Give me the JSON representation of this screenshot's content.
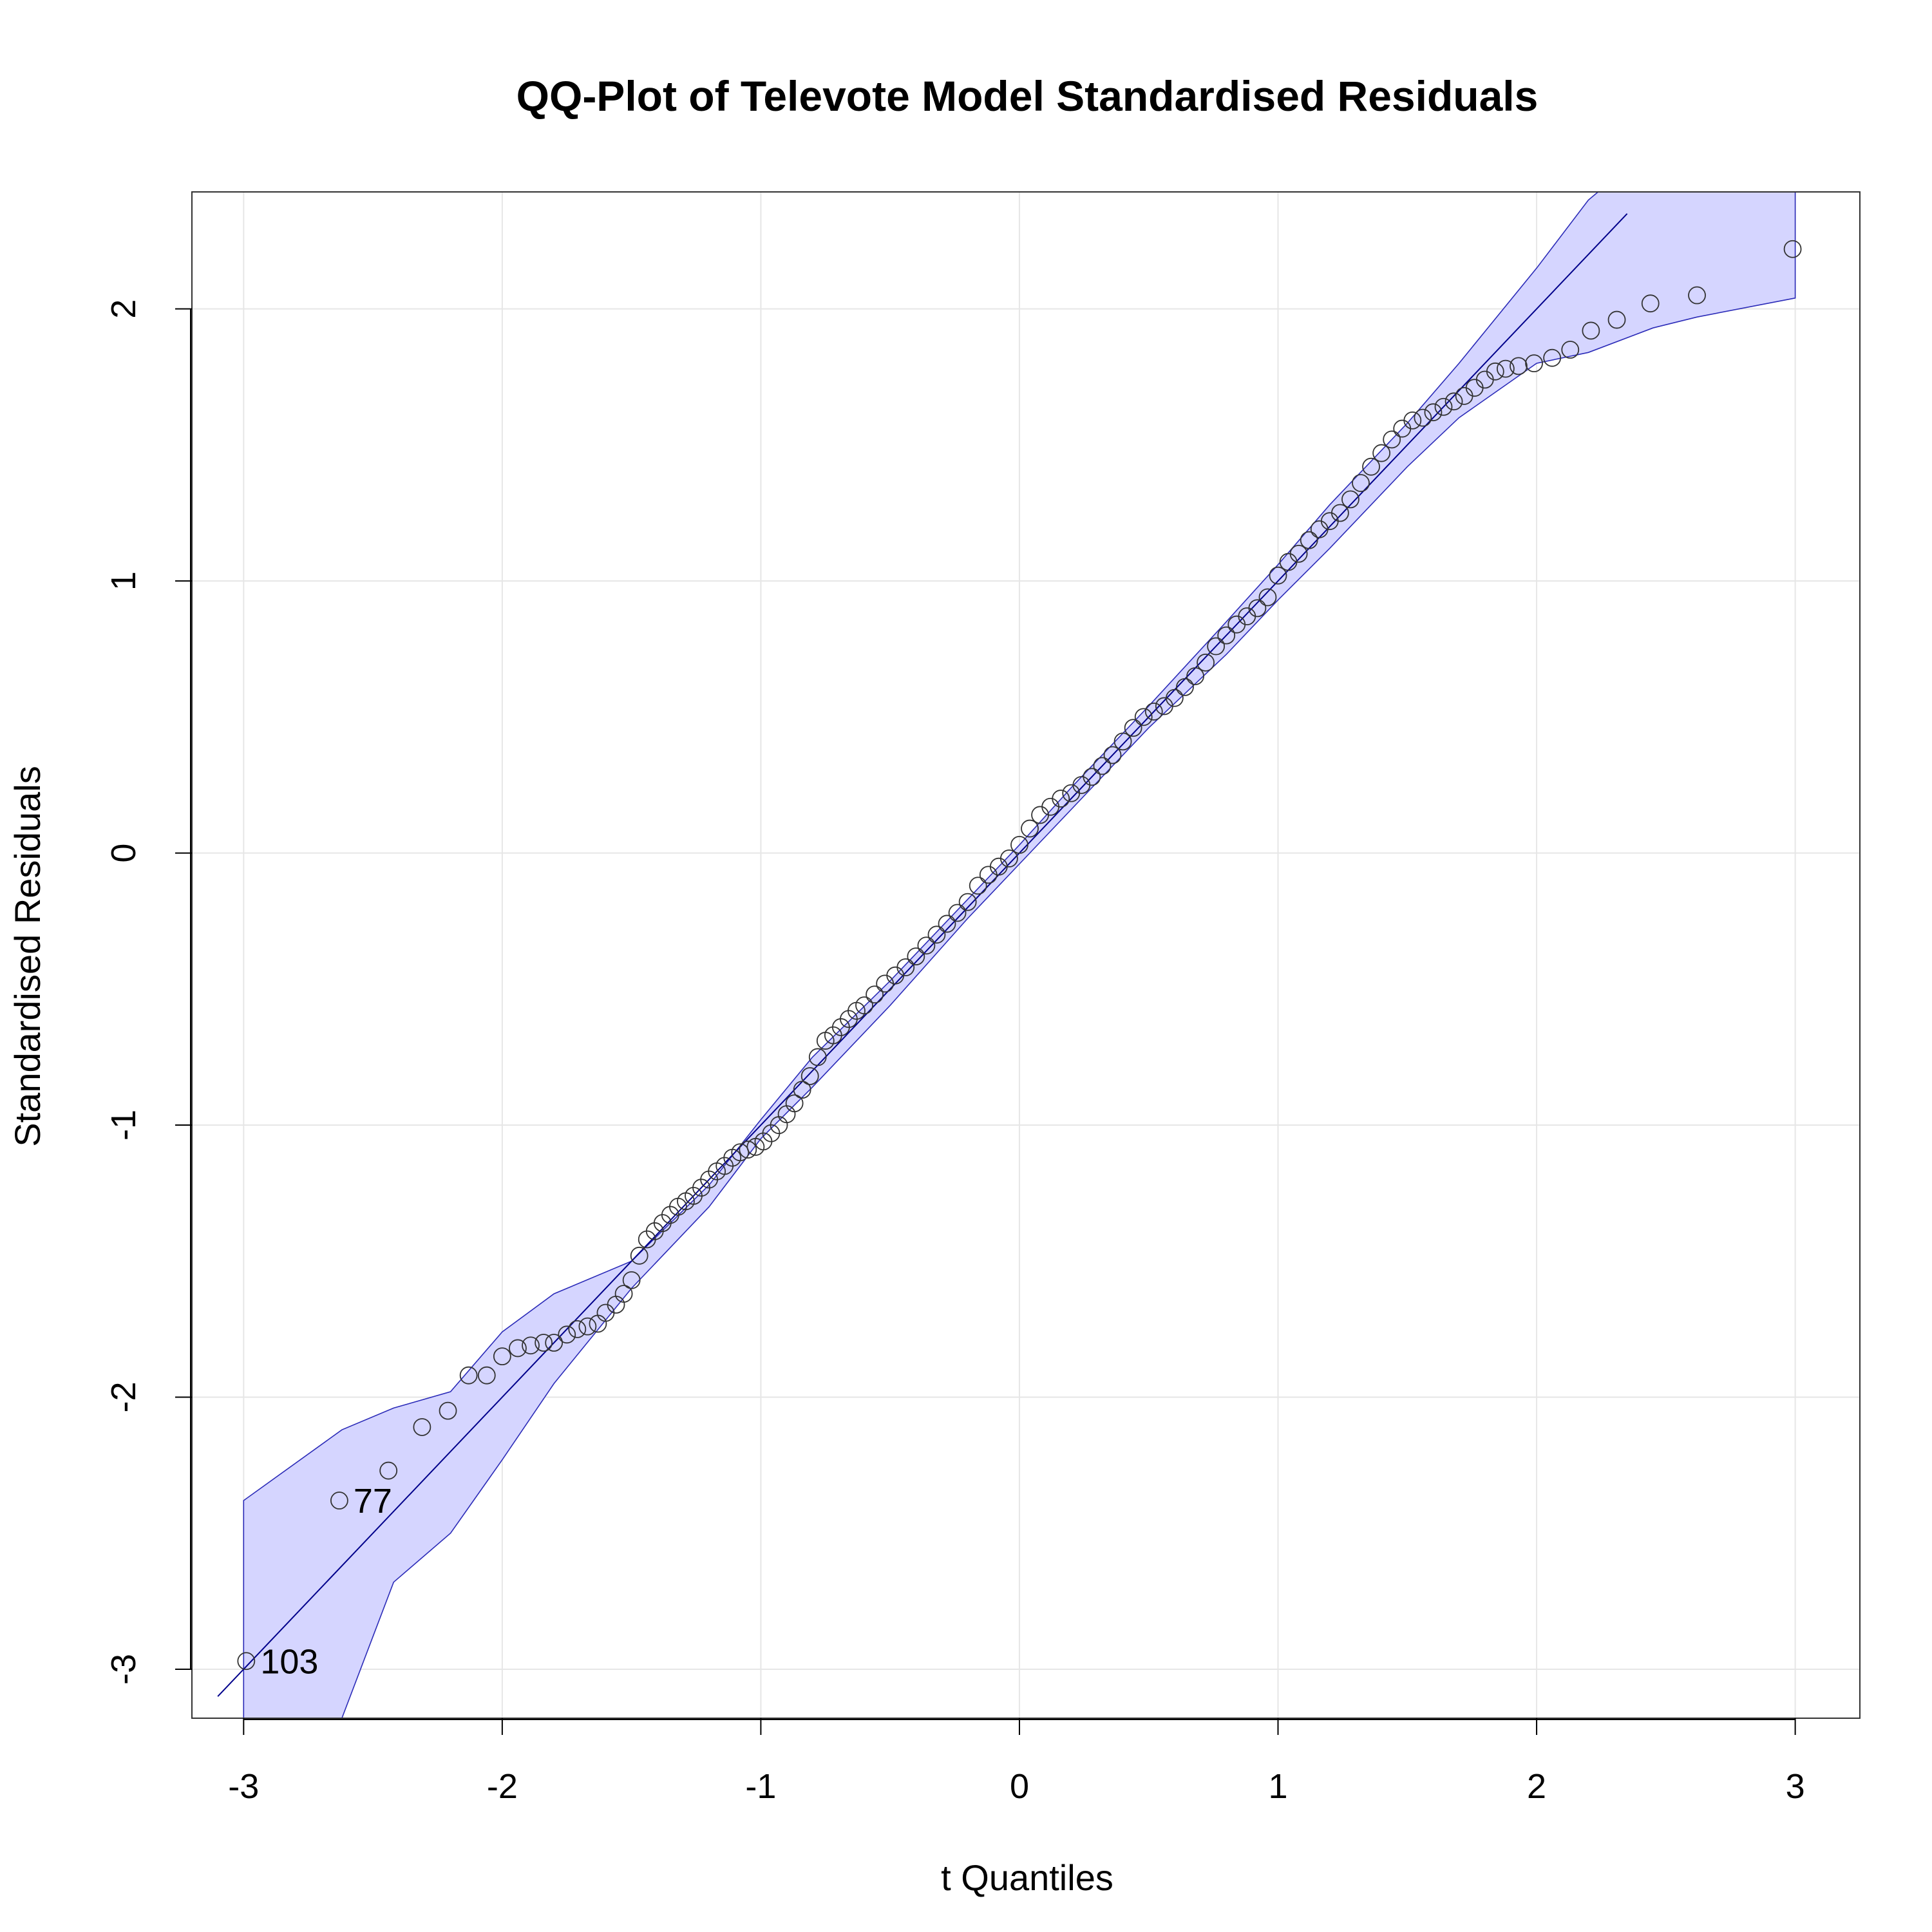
{
  "chart_data": {
    "type": "scatter",
    "title": "QQ-Plot of Televote Model Standardised Residuals",
    "xlabel": "t Quantiles",
    "ylabel": "Standardised Residuals",
    "xlim": [
      -3.2,
      3.25
    ],
    "ylim": [
      -3.18,
      2.43
    ],
    "x_ticks": [
      -3,
      -2,
      -1,
      0,
      1,
      2,
      3
    ],
    "y_ticks": [
      -3,
      -2,
      -1,
      0,
      1,
      2
    ],
    "grid": true,
    "reference_line": {
      "intercept": 0.0,
      "slope": 1.0,
      "color": "#00008B"
    },
    "confidence_band": {
      "color": "#D5D5FF",
      "x": [
        -3.0,
        -2.62,
        -2.42,
        -2.2,
        -2.0,
        -1.8,
        -1.5,
        -1.2,
        -1.0,
        -0.8,
        -0.5,
        -0.2,
        0.0,
        0.2,
        0.5,
        0.8,
        1.0,
        1.2,
        1.5,
        1.7,
        2.0,
        2.2,
        2.45,
        2.62,
        3.0
      ],
      "upper": [
        -2.38,
        -2.12,
        -2.04,
        -1.98,
        -1.76,
        -1.62,
        -1.5,
        -1.22,
        -0.98,
        -0.75,
        -0.47,
        -0.17,
        0.03,
        0.24,
        0.54,
        0.85,
        1.06,
        1.28,
        1.58,
        1.8,
        2.15,
        2.4,
        2.6,
        2.5,
        2.43
      ],
      "lower": [
        -3.18,
        -3.18,
        -2.68,
        -2.5,
        -2.23,
        -1.95,
        -1.6,
        -1.3,
        -1.05,
        -0.86,
        -0.56,
        -0.24,
        -0.04,
        0.16,
        0.46,
        0.73,
        0.93,
        1.12,
        1.42,
        1.6,
        1.8,
        1.84,
        1.93,
        1.97,
        2.04
      ]
    },
    "points": {
      "x": [
        -2.99,
        -2.63,
        -2.44,
        -2.31,
        -2.21,
        -2.13,
        -2.06,
        -2.0,
        -1.94,
        -1.89,
        -1.84,
        -1.8,
        -1.75,
        -1.71,
        -1.67,
        -1.63,
        -1.6,
        -1.56,
        -1.53,
        -1.5,
        -1.47,
        -1.44,
        -1.41,
        -1.38,
        -1.35,
        -1.32,
        -1.29,
        -1.26,
        -1.23,
        -1.2,
        -1.17,
        -1.14,
        -1.11,
        -1.08,
        -1.05,
        -1.02,
        -0.99,
        -0.96,
        -0.93,
        -0.9,
        -0.87,
        -0.84,
        -0.81,
        -0.78,
        -0.75,
        -0.72,
        -0.69,
        -0.66,
        -0.63,
        -0.6,
        -0.56,
        -0.52,
        -0.48,
        -0.44,
        -0.4,
        -0.36,
        -0.32,
        -0.28,
        -0.24,
        -0.2,
        -0.16,
        -0.12,
        -0.08,
        -0.04,
        0.0,
        0.04,
        0.08,
        0.12,
        0.16,
        0.2,
        0.24,
        0.28,
        0.32,
        0.36,
        0.4,
        0.44,
        0.48,
        0.52,
        0.56,
        0.6,
        0.64,
        0.68,
        0.72,
        0.76,
        0.8,
        0.84,
        0.88,
        0.92,
        0.96,
        1.0,
        1.04,
        1.08,
        1.12,
        1.16,
        1.2,
        1.24,
        1.28,
        1.32,
        1.36,
        1.4,
        1.44,
        1.48,
        1.52,
        1.56,
        1.6,
        1.64,
        1.68,
        1.72,
        1.76,
        1.8,
        1.84,
        1.88,
        1.93,
        1.99,
        2.06,
        2.13,
        2.21,
        2.31,
        2.44,
        2.62,
        2.99
      ],
      "y": [
        -2.97,
        -2.38,
        -2.27,
        -2.11,
        -2.05,
        -1.92,
        -1.92,
        -1.85,
        -1.82,
        -1.81,
        -1.8,
        -1.8,
        -1.77,
        -1.75,
        -1.74,
        -1.73,
        -1.69,
        -1.66,
        -1.62,
        -1.57,
        -1.48,
        -1.42,
        -1.39,
        -1.36,
        -1.33,
        -1.3,
        -1.28,
        -1.26,
        -1.23,
        -1.2,
        -1.17,
        -1.15,
        -1.12,
        -1.1,
        -1.09,
        -1.08,
        -1.06,
        -1.03,
        -1.0,
        -0.96,
        -0.92,
        -0.87,
        -0.82,
        -0.75,
        -0.69,
        -0.67,
        -0.64,
        -0.61,
        -0.58,
        -0.56,
        -0.52,
        -0.48,
        -0.45,
        -0.42,
        -0.38,
        -0.34,
        -0.3,
        -0.26,
        -0.22,
        -0.18,
        -0.12,
        -0.08,
        -0.05,
        -0.02,
        0.03,
        0.09,
        0.14,
        0.17,
        0.2,
        0.22,
        0.25,
        0.28,
        0.32,
        0.36,
        0.41,
        0.46,
        0.5,
        0.52,
        0.54,
        0.57,
        0.61,
        0.65,
        0.7,
        0.76,
        0.8,
        0.84,
        0.87,
        0.9,
        0.94,
        1.02,
        1.07,
        1.1,
        1.15,
        1.19,
        1.22,
        1.25,
        1.3,
        1.36,
        1.42,
        1.47,
        1.52,
        1.56,
        1.59,
        1.6,
        1.62,
        1.64,
        1.66,
        1.68,
        1.71,
        1.74,
        1.77,
        1.78,
        1.79,
        1.8,
        1.82,
        1.85,
        1.92,
        1.96,
        2.02,
        2.05,
        2.22
      ]
    },
    "annotations": [
      {
        "text": "103",
        "x": -2.99,
        "y": -2.97
      },
      {
        "text": "77",
        "x": -2.63,
        "y": -2.38
      }
    ]
  }
}
